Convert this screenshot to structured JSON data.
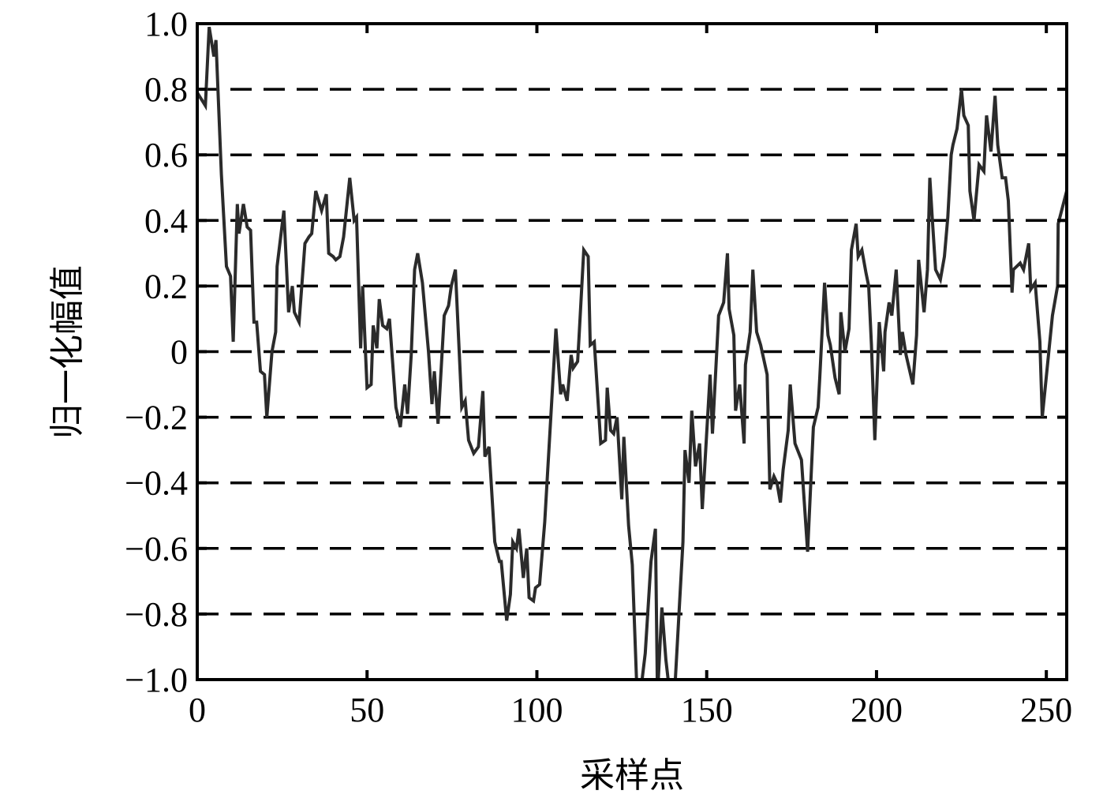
{
  "chart_data": {
    "type": "line",
    "title": "",
    "xlabel": "采样点",
    "ylabel": "归一化幅值",
    "xlim": [
      0,
      256
    ],
    "ylim": [
      -1.0,
      1.0
    ],
    "x_ticks": [
      "0",
      "50",
      "100",
      "150",
      "200",
      "250"
    ],
    "x_tick_values": [
      0,
      50,
      100,
      150,
      200,
      250
    ],
    "y_ticks": [
      "1.0",
      "0.8",
      "0.6",
      "0.4",
      "0.2",
      "0",
      "−0.2",
      "−0.4",
      "−0.6",
      "−0.8",
      "−1.0"
    ],
    "y_tick_values": [
      1.0,
      0.8,
      0.6,
      0.4,
      0.2,
      0,
      -0.2,
      -0.4,
      -0.6,
      -0.8,
      -1.0
    ],
    "grid": "horizontal dashed",
    "line_color": "#2b2b2b",
    "series": [
      {
        "points": [
          [
            0,
            0.79
          ],
          [
            2.4,
            0.75
          ],
          [
            3.5,
            0.99
          ],
          [
            4.9,
            0.9
          ],
          [
            5.5,
            0.95
          ],
          [
            7.1,
            0.54
          ],
          [
            8.6,
            0.26
          ],
          [
            9.8,
            0.23
          ],
          [
            10.6,
            0.03
          ],
          [
            11.8,
            0.45
          ],
          [
            12.3,
            0.36
          ],
          [
            13.6,
            0.45
          ],
          [
            14.7,
            0.38
          ],
          [
            15.7,
            0.37
          ],
          [
            16.7,
            0.09
          ],
          [
            17.5,
            0.09
          ],
          [
            18.6,
            -0.06
          ],
          [
            19.8,
            -0.07
          ],
          [
            20.5,
            -0.2
          ],
          [
            22,
            0
          ],
          [
            23.1,
            0.06
          ],
          [
            23.5,
            0.26
          ],
          [
            25.5,
            0.43
          ],
          [
            26.9,
            0.12
          ],
          [
            28,
            0.2
          ],
          [
            28.6,
            0.12
          ],
          [
            30,
            0.09
          ],
          [
            31.7,
            0.33
          ],
          [
            32.9,
            0.35
          ],
          [
            33.7,
            0.36
          ],
          [
            34.9,
            0.49
          ],
          [
            36.6,
            0.43
          ],
          [
            38,
            0.48
          ],
          [
            38.7,
            0.3
          ],
          [
            40,
            0.29
          ],
          [
            40.8,
            0.28
          ],
          [
            42,
            0.29
          ],
          [
            43.1,
            0.35
          ],
          [
            44.9,
            0.53
          ],
          [
            46.2,
            0.4
          ],
          [
            46.9,
            0.41
          ],
          [
            48.1,
            0.01
          ],
          [
            48.7,
            0.2
          ],
          [
            50,
            -0.11
          ],
          [
            51.2,
            -0.1
          ],
          [
            51.8,
            0.08
          ],
          [
            52.9,
            0.01
          ],
          [
            53.6,
            0.16
          ],
          [
            54.6,
            0.08
          ],
          [
            55.8,
            0.07
          ],
          [
            56.6,
            0.1
          ],
          [
            58.5,
            -0.17
          ],
          [
            59.8,
            -0.23
          ],
          [
            61.1,
            -0.1
          ],
          [
            61.9,
            -0.19
          ],
          [
            63,
            -0.01
          ],
          [
            64,
            0.25
          ],
          [
            64.9,
            0.3
          ],
          [
            66.3,
            0.21
          ],
          [
            68.1,
            0
          ],
          [
            69.1,
            -0.16
          ],
          [
            69.8,
            -0.06
          ],
          [
            70.9,
            -0.22
          ],
          [
            72.7,
            0.11
          ],
          [
            74,
            0.14
          ],
          [
            74.8,
            0.2
          ],
          [
            76,
            0.25
          ],
          [
            77.9,
            -0.17
          ],
          [
            78.9,
            -0.15
          ],
          [
            79.9,
            -0.27
          ],
          [
            81.4,
            -0.31
          ],
          [
            82.8,
            -0.29
          ],
          [
            84.1,
            -0.12
          ],
          [
            84.7,
            -0.32
          ],
          [
            85.9,
            -0.29
          ],
          [
            87.6,
            -0.58
          ],
          [
            89,
            -0.64
          ],
          [
            89.5,
            -0.64
          ],
          [
            91.1,
            -0.82
          ],
          [
            92.2,
            -0.74
          ],
          [
            92.9,
            -0.58
          ],
          [
            94,
            -0.6
          ],
          [
            94.7,
            -0.54
          ],
          [
            96,
            -0.69
          ],
          [
            97,
            -0.6
          ],
          [
            97.7,
            -0.75
          ],
          [
            99,
            -0.76
          ],
          [
            99.6,
            -0.72
          ],
          [
            100.8,
            -0.71
          ],
          [
            102.3,
            -0.52
          ],
          [
            105.6,
            0.07
          ],
          [
            107,
            -0.13
          ],
          [
            107.6,
            -0.1
          ],
          [
            108.9,
            -0.15
          ],
          [
            110.1,
            -0.01
          ],
          [
            110.7,
            -0.05
          ],
          [
            112,
            -0.03
          ],
          [
            112.4,
            0.04
          ],
          [
            113.8,
            0.31
          ],
          [
            115.1,
            0.29
          ],
          [
            115.7,
            0.02
          ],
          [
            116.9,
            0.03
          ],
          [
            118.8,
            -0.28
          ],
          [
            120.2,
            -0.27
          ],
          [
            120.7,
            -0.11
          ],
          [
            121.7,
            -0.24
          ],
          [
            122.6,
            -0.25
          ],
          [
            123.6,
            -0.2
          ],
          [
            125,
            -0.45
          ],
          [
            125.6,
            -0.26
          ],
          [
            127,
            -0.53
          ],
          [
            128.1,
            -0.65
          ],
          [
            129.5,
            -1.05
          ],
          [
            130.4,
            -1.05
          ],
          [
            131.9,
            -0.92
          ],
          [
            133.6,
            -0.64
          ],
          [
            134.9,
            -0.54
          ],
          [
            135.5,
            -1.05
          ],
          [
            136.8,
            -0.78
          ],
          [
            138,
            -0.94
          ],
          [
            139.2,
            -1.05
          ],
          [
            140.5,
            -1.05
          ],
          [
            143,
            -0.58
          ],
          [
            143.6,
            -0.3
          ],
          [
            144.8,
            -0.4
          ],
          [
            145.6,
            -0.18
          ],
          [
            146.7,
            -0.35
          ],
          [
            147.9,
            -0.28
          ],
          [
            148.7,
            -0.48
          ],
          [
            151,
            -0.07
          ],
          [
            151.7,
            -0.25
          ],
          [
            153.5,
            0.11
          ],
          [
            155,
            0.15
          ],
          [
            156.1,
            0.3
          ],
          [
            156.6,
            0.13
          ],
          [
            158,
            0.05
          ],
          [
            158.5,
            -0.18
          ],
          [
            159.7,
            -0.1
          ],
          [
            161,
            -0.28
          ],
          [
            161.4,
            -0.04
          ],
          [
            162.8,
            0.06
          ],
          [
            163.6,
            0.25
          ],
          [
            164.7,
            0.06
          ],
          [
            165.9,
            0.02
          ],
          [
            167.8,
            -0.07
          ],
          [
            168.6,
            -0.42
          ],
          [
            169.8,
            -0.38
          ],
          [
            170.7,
            -0.4
          ],
          [
            171.7,
            -0.46
          ],
          [
            172.5,
            -0.36
          ],
          [
            174,
            -0.24
          ],
          [
            174.6,
            -0.1
          ],
          [
            176,
            -0.28
          ],
          [
            177.9,
            -0.33
          ],
          [
            179.7,
            -0.61
          ],
          [
            181.4,
            -0.23
          ],
          [
            182.8,
            -0.17
          ],
          [
            183.3,
            -0.08
          ],
          [
            184.7,
            0.21
          ],
          [
            185.7,
            0.05
          ],
          [
            186.4,
            0.02
          ],
          [
            187.8,
            -0.08
          ],
          [
            189,
            -0.13
          ],
          [
            189.5,
            0.12
          ],
          [
            190.7,
            0
          ],
          [
            191.9,
            0.07
          ],
          [
            192.6,
            0.31
          ],
          [
            194,
            0.39
          ],
          [
            194.6,
            0.29
          ],
          [
            195.7,
            0.31
          ],
          [
            196.9,
            0.24
          ],
          [
            197.7,
            0.2
          ],
          [
            198.5,
            0.02
          ],
          [
            199.5,
            -0.27
          ],
          [
            200.8,
            0.09
          ],
          [
            202.1,
            -0.06
          ],
          [
            202.5,
            0.06
          ],
          [
            203.7,
            0.15
          ],
          [
            204.5,
            0.11
          ],
          [
            205.8,
            0.25
          ],
          [
            207,
            -0.01
          ],
          [
            207.6,
            0.06
          ],
          [
            208.7,
            -0.01
          ],
          [
            210.7,
            -0.1
          ],
          [
            211.8,
            0.05
          ],
          [
            212.4,
            0.28
          ],
          [
            214,
            0.12
          ],
          [
            215,
            0.25
          ],
          [
            215.7,
            0.53
          ],
          [
            216.4,
            0.41
          ],
          [
            217.4,
            0.25
          ],
          [
            218.8,
            0.22
          ],
          [
            220,
            0.29
          ],
          [
            221,
            0.41
          ],
          [
            222,
            0.6
          ],
          [
            222.5,
            0.63
          ],
          [
            223.7,
            0.68
          ],
          [
            225,
            0.8
          ],
          [
            225.7,
            0.72
          ],
          [
            227,
            0.69
          ],
          [
            227.5,
            0.49
          ],
          [
            228.7,
            0.4
          ],
          [
            230.2,
            0.57
          ],
          [
            231.6,
            0.55
          ],
          [
            232.4,
            0.72
          ],
          [
            233.7,
            0.61
          ],
          [
            234.9,
            0.78
          ],
          [
            235.7,
            0.63
          ],
          [
            237,
            0.53
          ],
          [
            238,
            0.53
          ],
          [
            238.8,
            0.46
          ],
          [
            239.9,
            0.18
          ],
          [
            240.3,
            0.25
          ],
          [
            242.3,
            0.27
          ],
          [
            243.3,
            0.25
          ],
          [
            244.8,
            0.33
          ],
          [
            245.4,
            0.19
          ],
          [
            246.7,
            0.21
          ],
          [
            248.1,
            0.03
          ],
          [
            248.8,
            -0.2
          ],
          [
            251.8,
            0.11
          ],
          [
            253.3,
            0.2
          ],
          [
            253.5,
            0.39
          ],
          [
            256,
            0.49
          ]
        ]
      }
    ]
  }
}
